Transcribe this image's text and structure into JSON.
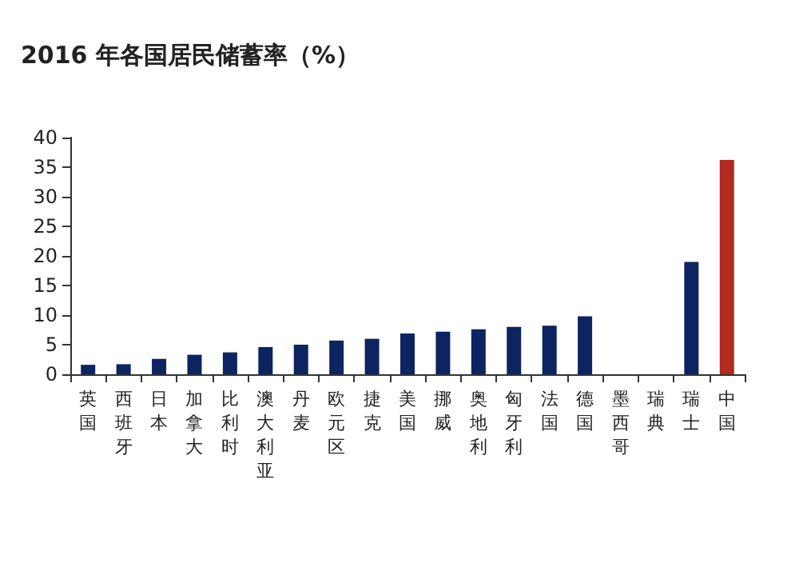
{
  "chart_data": {
    "type": "bar",
    "title": "2016 年各国居民储蓄率（%）",
    "categories": [
      "英国",
      "西班牙",
      "日本",
      "加拿大",
      "比利时",
      "澳大利亚",
      "丹麦",
      "欧元区",
      "捷克",
      "美国",
      "挪威",
      "奥地利",
      "匈牙利",
      "法国",
      "德国",
      "墨西哥",
      "瑞典",
      "瑞士",
      "中国"
    ],
    "values": [
      1.6,
      1.7,
      2.6,
      3.3,
      3.7,
      4.6,
      5.0,
      5.7,
      6.0,
      6.9,
      7.2,
      7.6,
      8.0,
      8.2,
      9.8,
      null,
      null,
      19.0,
      36.2
    ],
    "colors": [
      "#0d2463",
      "#0d2463",
      "#0d2463",
      "#0d2463",
      "#0d2463",
      "#0d2463",
      "#0d2463",
      "#0d2463",
      "#0d2463",
      "#0d2463",
      "#0d2463",
      "#0d2463",
      "#0d2463",
      "#0d2463",
      "#0d2463",
      "#0d2463",
      "#0d2463",
      "#0d2463",
      "#b22a20"
    ],
    "ylim": [
      0,
      40
    ],
    "yticks": [
      0,
      5,
      10,
      15,
      20,
      25,
      30,
      35,
      40
    ]
  }
}
